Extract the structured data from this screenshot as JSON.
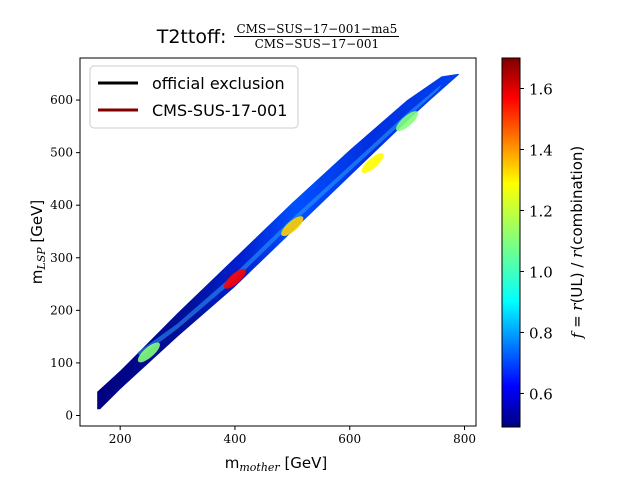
{
  "chart_data": {
    "type": "heatmap",
    "title": {
      "prefix": "T2ttoff:",
      "numerator": "CMS−SUS−17−001−ma5",
      "denominator": "CMS−SUS−17−001"
    },
    "xlabel": "m_mother [GeV]",
    "xlabel_main": "m",
    "xlabel_sub": "mother",
    "xlabel_unit": " [GeV]",
    "ylabel": "m_LSP [GeV]",
    "ylabel_main": "m",
    "ylabel_sub": "LSP",
    "ylabel_unit": " [GeV]",
    "xlim": [
      130,
      820
    ],
    "ylim": [
      -20,
      680
    ],
    "xticks": [
      200,
      400,
      600,
      800
    ],
    "yticks": [
      0,
      100,
      200,
      300,
      400,
      500,
      600
    ],
    "legend": {
      "placement": "top-left",
      "entries": [
        {
          "label": "official exclusion",
          "color": "#000000"
        },
        {
          "label": "CMS-SUS-17-001",
          "color": "#800000"
        }
      ]
    },
    "colorbar": {
      "label": "f = r(UL) / r(combination)",
      "label_parts": [
        "f",
        " = ",
        "r",
        "(UL) / ",
        "r",
        "(combination)"
      ],
      "range": [
        0.49,
        1.7
      ],
      "ticks": [
        "0.6",
        "0.8",
        "1.0",
        "1.2",
        "1.4",
        "1.6"
      ],
      "colormap": "jet"
    },
    "band": {
      "description_points": [
        {
          "mother": 160,
          "lsp_low": 12,
          "lsp_high": 45
        },
        {
          "mother": 800,
          "lsp_low": 645,
          "lsp_high": 650
        }
      ]
    },
    "hotspots": [
      {
        "mother": 400,
        "lsp": 260,
        "f": 1.55
      },
      {
        "mother": 500,
        "lsp": 360,
        "f": 1.3
      },
      {
        "mother": 640,
        "lsp": 480,
        "f": 1.25
      },
      {
        "mother": 700,
        "lsp": 560,
        "f": 1.1
      },
      {
        "mother": 250,
        "lsp": 120,
        "f": 1.1
      }
    ]
  }
}
